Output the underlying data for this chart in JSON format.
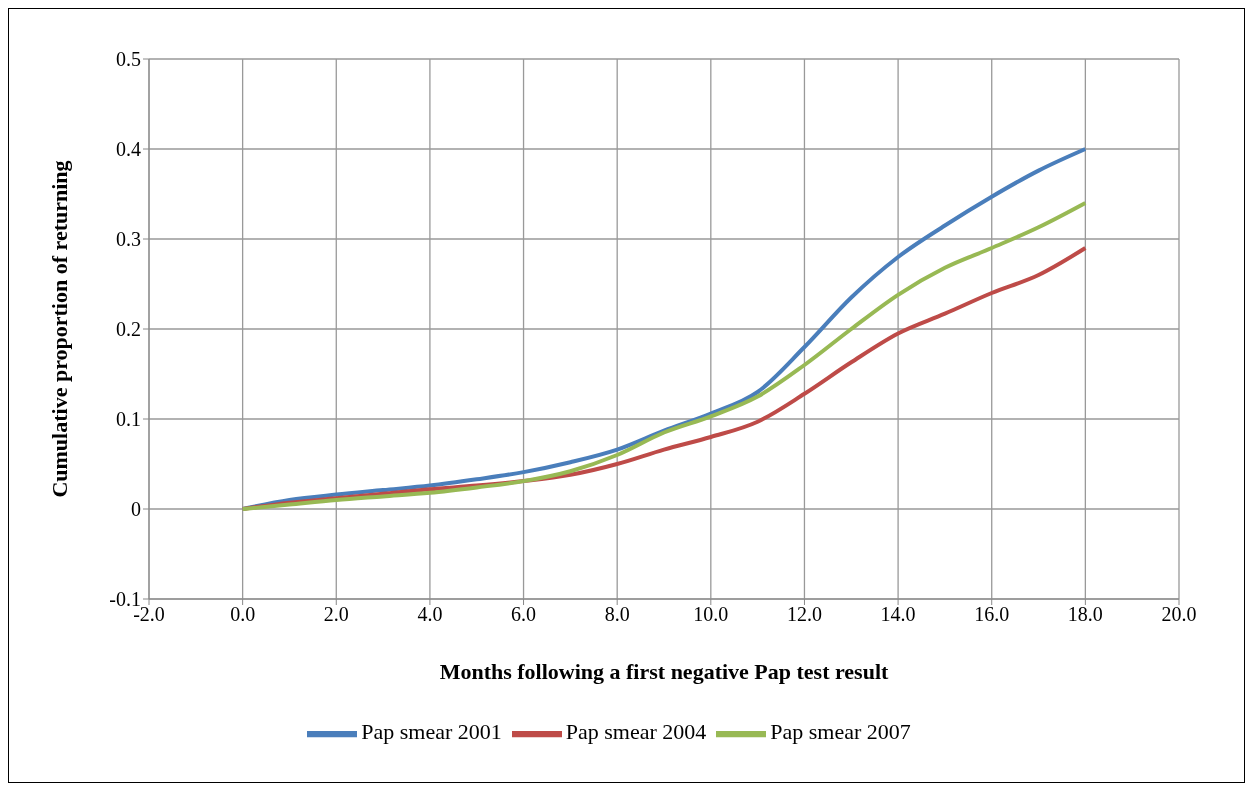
{
  "chart_data": {
    "type": "line",
    "xlabel": "Months following a first negative Pap test result",
    "ylabel": "Cumulative  proportion of returning",
    "x": [
      0,
      1,
      2,
      3,
      4,
      5,
      6,
      7,
      8,
      9,
      10,
      11,
      12,
      13,
      14,
      15,
      16,
      17,
      18
    ],
    "series": [
      {
        "name": "Pap smear 2001",
        "color": "#4a7ebb",
        "values": [
          0,
          0.01,
          0.016,
          0.021,
          0.026,
          0.033,
          0.041,
          0.052,
          0.066,
          0.087,
          0.106,
          0.13,
          0.18,
          0.235,
          0.28,
          0.315,
          0.347,
          0.376,
          0.4
        ]
      },
      {
        "name": "Pap smear 2004",
        "color": "#be4b48",
        "values": [
          0,
          0.007,
          0.012,
          0.017,
          0.022,
          0.026,
          0.031,
          0.038,
          0.05,
          0.066,
          0.08,
          0.097,
          0.128,
          0.163,
          0.195,
          0.217,
          0.24,
          0.26,
          0.29
        ]
      },
      {
        "name": "Pap smear 2007",
        "color": "#98b954",
        "values": [
          0,
          0.005,
          0.01,
          0.014,
          0.018,
          0.024,
          0.031,
          0.042,
          0.06,
          0.085,
          0.103,
          0.125,
          0.16,
          0.2,
          0.238,
          0.268,
          0.29,
          0.313,
          0.34
        ]
      }
    ],
    "xlim": [
      -2,
      20
    ],
    "xticks": [
      {
        "value": -2,
        "label": "-2.0"
      },
      {
        "value": 0,
        "label": "0.0"
      },
      {
        "value": 2,
        "label": "2.0"
      },
      {
        "value": 4,
        "label": "4.0"
      },
      {
        "value": 6,
        "label": "6.0"
      },
      {
        "value": 8,
        "label": "8.0"
      },
      {
        "value": 10,
        "label": "10.0"
      },
      {
        "value": 12,
        "label": "12.0"
      },
      {
        "value": 14,
        "label": "14.0"
      },
      {
        "value": 16,
        "label": "16.0"
      },
      {
        "value": 18,
        "label": "18.0"
      },
      {
        "value": 20,
        "label": "20.0"
      }
    ],
    "ylim": [
      -0.1,
      0.5
    ],
    "yticks": [
      -0.1,
      0,
      0.1,
      0.2,
      0.3,
      0.4,
      0.5
    ],
    "grid": true,
    "legend": "bottom",
    "marker": "none",
    "line_style": "solid"
  }
}
